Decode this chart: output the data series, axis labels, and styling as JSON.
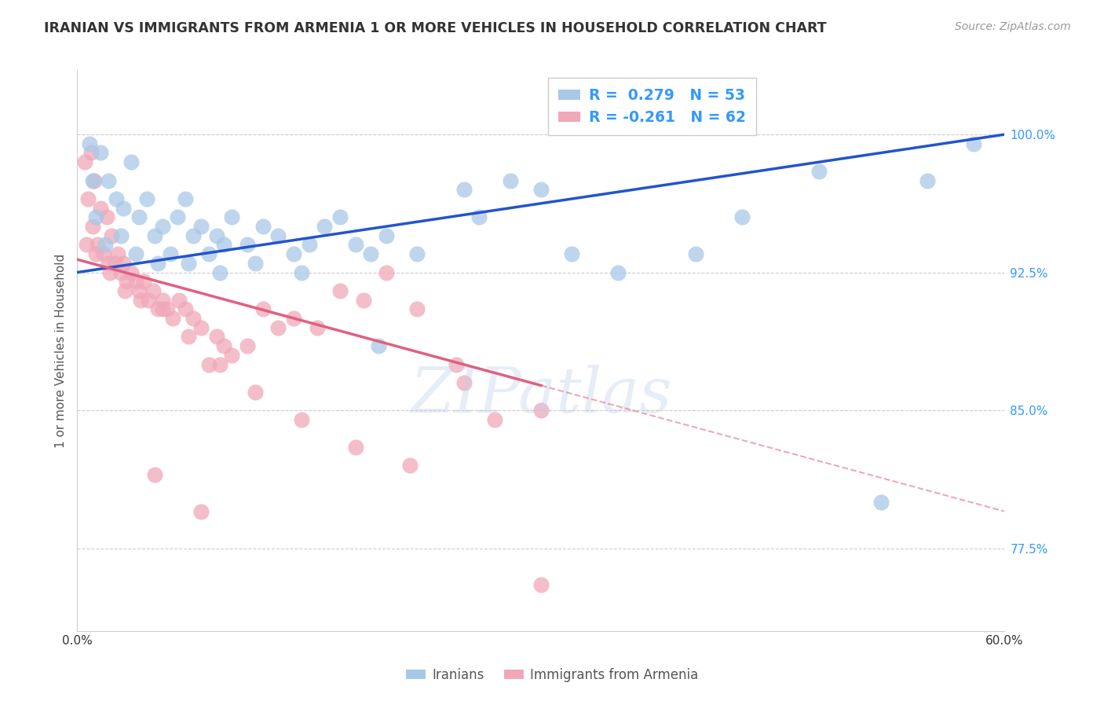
{
  "title": "IRANIAN VS IMMIGRANTS FROM ARMENIA 1 OR MORE VEHICLES IN HOUSEHOLD CORRELATION CHART",
  "source": "Source: ZipAtlas.com",
  "ylabel": "1 or more Vehicles in Household",
  "xmin": 0.0,
  "xmax": 60.0,
  "ymin": 73.0,
  "ymax": 103.5,
  "yticks": [
    77.5,
    85.0,
    92.5,
    100.0
  ],
  "ytick_labels": [
    "77.5%",
    "85.0%",
    "92.5%",
    "100.0%"
  ],
  "grid_color": "#cccccc",
  "background_color": "#ffffff",
  "iranians_color": "#a8c8e8",
  "armenians_color": "#f0a8b8",
  "iranians_line_color": "#2255cc",
  "armenians_line_color": "#e06080",
  "watermark": "ZIPatlas",
  "iran_line_x0": 0.0,
  "iran_line_y0": 92.5,
  "iran_line_x1": 60.0,
  "iran_line_y1": 100.0,
  "arm_line_x0": 0.0,
  "arm_line_y0": 93.2,
  "arm_line_x1": 60.0,
  "arm_line_y1": 79.5,
  "arm_line_solid_end_x": 30.0,
  "iranians_x": [
    0.8,
    1.0,
    1.5,
    2.0,
    2.5,
    3.0,
    3.5,
    4.0,
    4.5,
    5.0,
    5.5,
    6.0,
    6.5,
    7.0,
    7.5,
    8.0,
    8.5,
    9.0,
    9.5,
    10.0,
    11.0,
    12.0,
    13.0,
    14.0,
    15.0,
    16.0,
    17.0,
    18.0,
    19.0,
    20.0,
    22.0,
    25.0,
    28.0,
    32.0,
    35.0,
    40.0,
    48.0,
    52.0,
    55.0,
    58.0,
    1.2,
    1.8,
    2.8,
    3.8,
    5.2,
    7.2,
    9.2,
    11.5,
    14.5,
    19.5,
    26.0,
    30.0,
    43.0
  ],
  "iranians_y": [
    99.5,
    97.5,
    99.0,
    97.5,
    96.5,
    96.0,
    98.5,
    95.5,
    96.5,
    94.5,
    95.0,
    93.5,
    95.5,
    96.5,
    94.5,
    95.0,
    93.5,
    94.5,
    94.0,
    95.5,
    94.0,
    95.0,
    94.5,
    93.5,
    94.0,
    95.0,
    95.5,
    94.0,
    93.5,
    94.5,
    93.5,
    97.0,
    97.5,
    93.5,
    92.5,
    93.5,
    98.0,
    80.0,
    97.5,
    99.5,
    95.5,
    94.0,
    94.5,
    93.5,
    93.0,
    93.0,
    92.5,
    93.0,
    92.5,
    88.5,
    95.5,
    97.0,
    95.5
  ],
  "armenians_x": [
    0.5,
    0.7,
    0.9,
    1.0,
    1.1,
    1.3,
    1.5,
    1.7,
    1.9,
    2.0,
    2.2,
    2.4,
    2.6,
    2.8,
    3.0,
    3.2,
    3.5,
    3.8,
    4.0,
    4.3,
    4.6,
    4.9,
    5.2,
    5.5,
    5.8,
    6.2,
    6.6,
    7.0,
    7.5,
    8.0,
    8.5,
    9.0,
    9.5,
    10.0,
    11.0,
    12.0,
    13.0,
    14.0,
    15.5,
    17.0,
    18.5,
    20.0,
    22.0,
    24.5,
    27.0,
    30.0,
    0.6,
    1.2,
    2.1,
    3.1,
    4.1,
    5.5,
    7.2,
    9.2,
    11.5,
    14.5,
    18.0,
    21.5,
    25.0,
    5.0,
    8.0,
    30.0
  ],
  "armenians_y": [
    98.5,
    96.5,
    99.0,
    95.0,
    97.5,
    94.0,
    96.0,
    93.5,
    95.5,
    93.0,
    94.5,
    93.0,
    93.5,
    92.5,
    93.0,
    92.0,
    92.5,
    92.0,
    91.5,
    92.0,
    91.0,
    91.5,
    90.5,
    91.0,
    90.5,
    90.0,
    91.0,
    90.5,
    90.0,
    89.5,
    87.5,
    89.0,
    88.5,
    88.0,
    88.5,
    90.5,
    89.5,
    90.0,
    89.5,
    91.5,
    91.0,
    92.5,
    90.5,
    87.5,
    84.5,
    85.0,
    94.0,
    93.5,
    92.5,
    91.5,
    91.0,
    90.5,
    89.0,
    87.5,
    86.0,
    84.5,
    83.0,
    82.0,
    86.5,
    81.5,
    79.5,
    75.5
  ]
}
